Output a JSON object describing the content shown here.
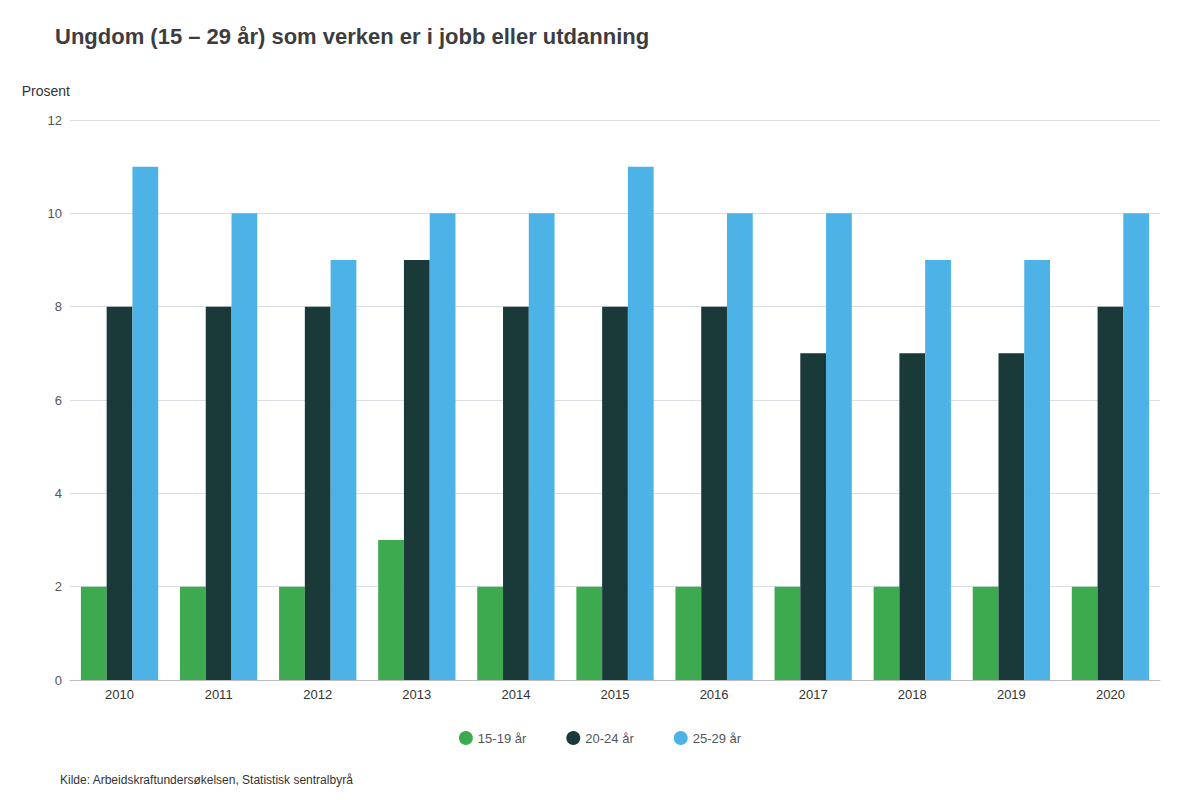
{
  "chart_data": {
    "type": "bar",
    "title": "Ungdom (15 – 29 år) som verken er i jobb eller utdanning",
    "ylabel": "Prosent",
    "annotations": [
      "Kilde: Arbeidskraftundersøkelsen, Statistisk sentralbyrå"
    ],
    "categories": [
      "2010",
      "2011",
      "2012",
      "2013",
      "2014",
      "2015",
      "2016",
      "2017",
      "2018",
      "2019",
      "2020"
    ],
    "series": [
      {
        "name": "15-19 år",
        "color": "#3daa4f",
        "values": [
          2,
          2,
          2,
          3,
          2,
          2,
          2,
          2,
          2,
          2,
          2
        ]
      },
      {
        "name": "20-24 år",
        "color": "#1a3a3a",
        "values": [
          8,
          8,
          8,
          9,
          8,
          8,
          8,
          7,
          7,
          7,
          8
        ]
      },
      {
        "name": "25-29 år",
        "color": "#4db3e6",
        "values": [
          11,
          10,
          9,
          10,
          10,
          11,
          10,
          10,
          9,
          9,
          10
        ]
      }
    ],
    "ylim": [
      0,
      12
    ],
    "yticks": [
      0,
      2,
      4,
      6,
      8,
      10,
      12
    ],
    "grid": true,
    "legend": "bottom"
  }
}
